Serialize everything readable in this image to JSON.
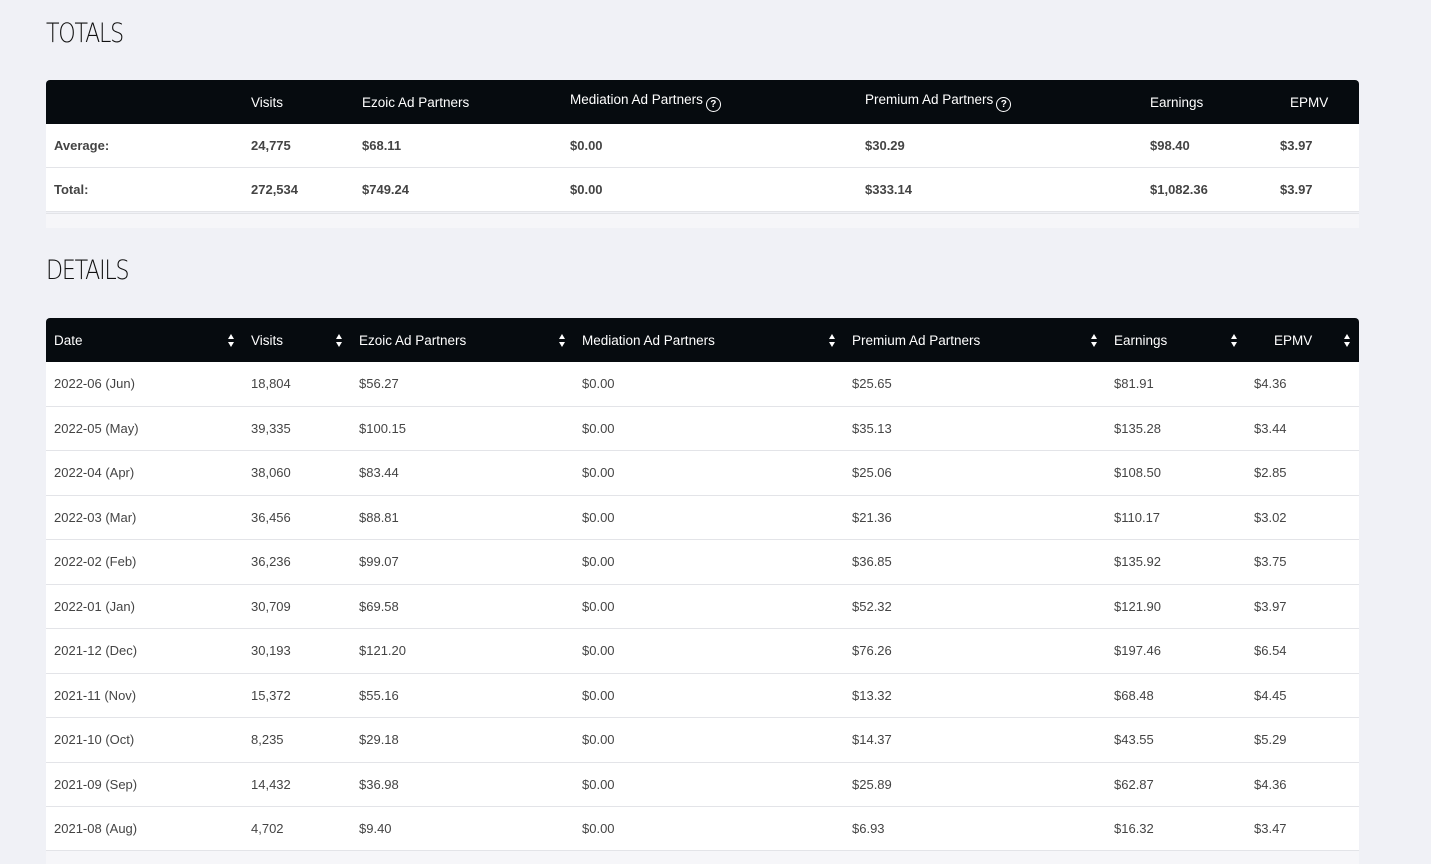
{
  "totals": {
    "title": "TOTALS",
    "columns": [
      "",
      "Visits",
      "Ezoic Ad Partners",
      "Mediation Ad Partners",
      "Premium Ad Partners",
      "Earnings",
      "EPMV"
    ],
    "rows": [
      [
        "Average:",
        "24,775",
        "$68.11",
        "$0.00",
        "$30.29",
        "$98.40",
        "$3.97"
      ],
      [
        "Total:",
        "272,534",
        "$749.24",
        "$0.00",
        "$333.14",
        "$1,082.36",
        "$3.97"
      ]
    ]
  },
  "details": {
    "title": "DETAILS",
    "columns": [
      "Date",
      "Visits",
      "Ezoic Ad Partners",
      "Mediation Ad Partners",
      "Premium Ad Partners",
      "Earnings",
      "EPMV"
    ],
    "rows": [
      [
        "2022-06 (Jun)",
        "18,804",
        "$56.27",
        "$0.00",
        "$25.65",
        "$81.91",
        "$4.36"
      ],
      [
        "2022-05 (May)",
        "39,335",
        "$100.15",
        "$0.00",
        "$35.13",
        "$135.28",
        "$3.44"
      ],
      [
        "2022-04 (Apr)",
        "38,060",
        "$83.44",
        "$0.00",
        "$25.06",
        "$108.50",
        "$2.85"
      ],
      [
        "2022-03 (Mar)",
        "36,456",
        "$88.81",
        "$0.00",
        "$21.36",
        "$110.17",
        "$3.02"
      ],
      [
        "2022-02 (Feb)",
        "36,236",
        "$99.07",
        "$0.00",
        "$36.85",
        "$135.92",
        "$3.75"
      ],
      [
        "2022-01 (Jan)",
        "30,709",
        "$69.58",
        "$0.00",
        "$52.32",
        "$121.90",
        "$3.97"
      ],
      [
        "2021-12 (Dec)",
        "30,193",
        "$121.20",
        "$0.00",
        "$76.26",
        "$197.46",
        "$6.54"
      ],
      [
        "2021-11 (Nov)",
        "15,372",
        "$55.16",
        "$0.00",
        "$13.32",
        "$68.48",
        "$4.45"
      ],
      [
        "2021-10 (Oct)",
        "8,235",
        "$29.18",
        "$0.00",
        "$14.37",
        "$43.55",
        "$5.29"
      ],
      [
        "2021-09 (Sep)",
        "14,432",
        "$36.98",
        "$0.00",
        "$25.89",
        "$62.87",
        "$4.36"
      ],
      [
        "2021-08 (Aug)",
        "4,702",
        "$9.40",
        "$0.00",
        "$6.93",
        "$16.32",
        "$3.47"
      ]
    ]
  },
  "icons": {
    "help": "question-circle-icon",
    "sort": "sort-arrows-icon"
  }
}
